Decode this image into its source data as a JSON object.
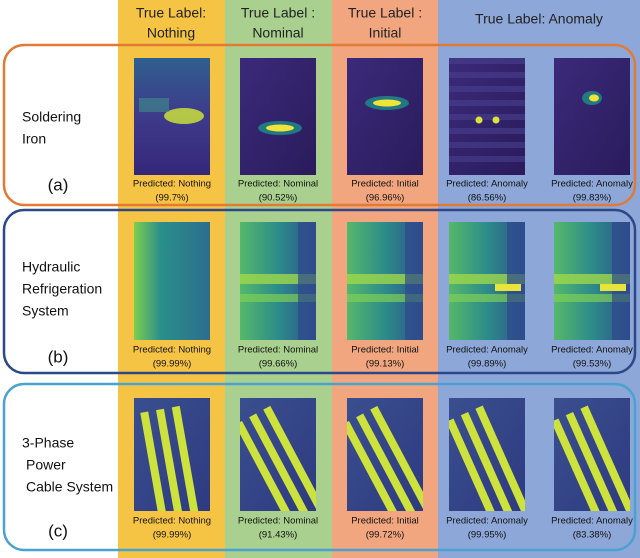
{
  "columns": [
    {
      "lines": [
        "True Label:",
        "Nothing"
      ]
    },
    {
      "lines": [
        "True Label :",
        "Nominal"
      ]
    },
    {
      "lines": [
        "True Label :",
        "Initial"
      ]
    },
    {
      "lines": [
        "True Label: Anomaly"
      ]
    }
  ],
  "rows": [
    {
      "label": [
        "Soldering",
        "Iron"
      ],
      "tag": "(a)",
      "cells": [
        {
          "prediction": "Predicted: Nothing",
          "confidence": "(99.7%)"
        },
        {
          "prediction": "Predicted: Nominal",
          "confidence": "(90.52%)"
        },
        {
          "prediction": "Predicted: Initial",
          "confidence": "(96.96%)"
        },
        {
          "prediction": "Predicted: Anomaly",
          "confidence": "(86.56%)"
        },
        {
          "prediction": "Predicted: Anomaly",
          "confidence": "(99.83%)"
        }
      ]
    },
    {
      "label": [
        "Hydraulic",
        "Refrigeration",
        "System"
      ],
      "tag": "(b)",
      "cells": [
        {
          "prediction": "Predicted: Nothing",
          "confidence": "(99.99%)"
        },
        {
          "prediction": "Predicted: Nominal",
          "confidence": "(99.66%)"
        },
        {
          "prediction": "Predicted: Initial",
          "confidence": "(99.13%)"
        },
        {
          "prediction": "Predicted: Anomaly",
          "confidence": "(99.89%)"
        },
        {
          "prediction": "Predicted: Anomaly",
          "confidence": "(99.53%)"
        }
      ]
    },
    {
      "label": [
        "3-Phase",
        "Power",
        "Cable System"
      ],
      "tag": "(c)",
      "cells": [
        {
          "prediction": "Predicted: Nothing",
          "confidence": "(99.99%)"
        },
        {
          "prediction": "Predicted: Nominal",
          "confidence": "(91.43%)"
        },
        {
          "prediction": "Predicted: Initial",
          "confidence": "(99.72%)"
        },
        {
          "prediction": "Predicted: Anomaly",
          "confidence": "(99.95%)"
        },
        {
          "prediction": "Predicted: Anomaly",
          "confidence": "(83.38%)"
        }
      ]
    }
  ]
}
